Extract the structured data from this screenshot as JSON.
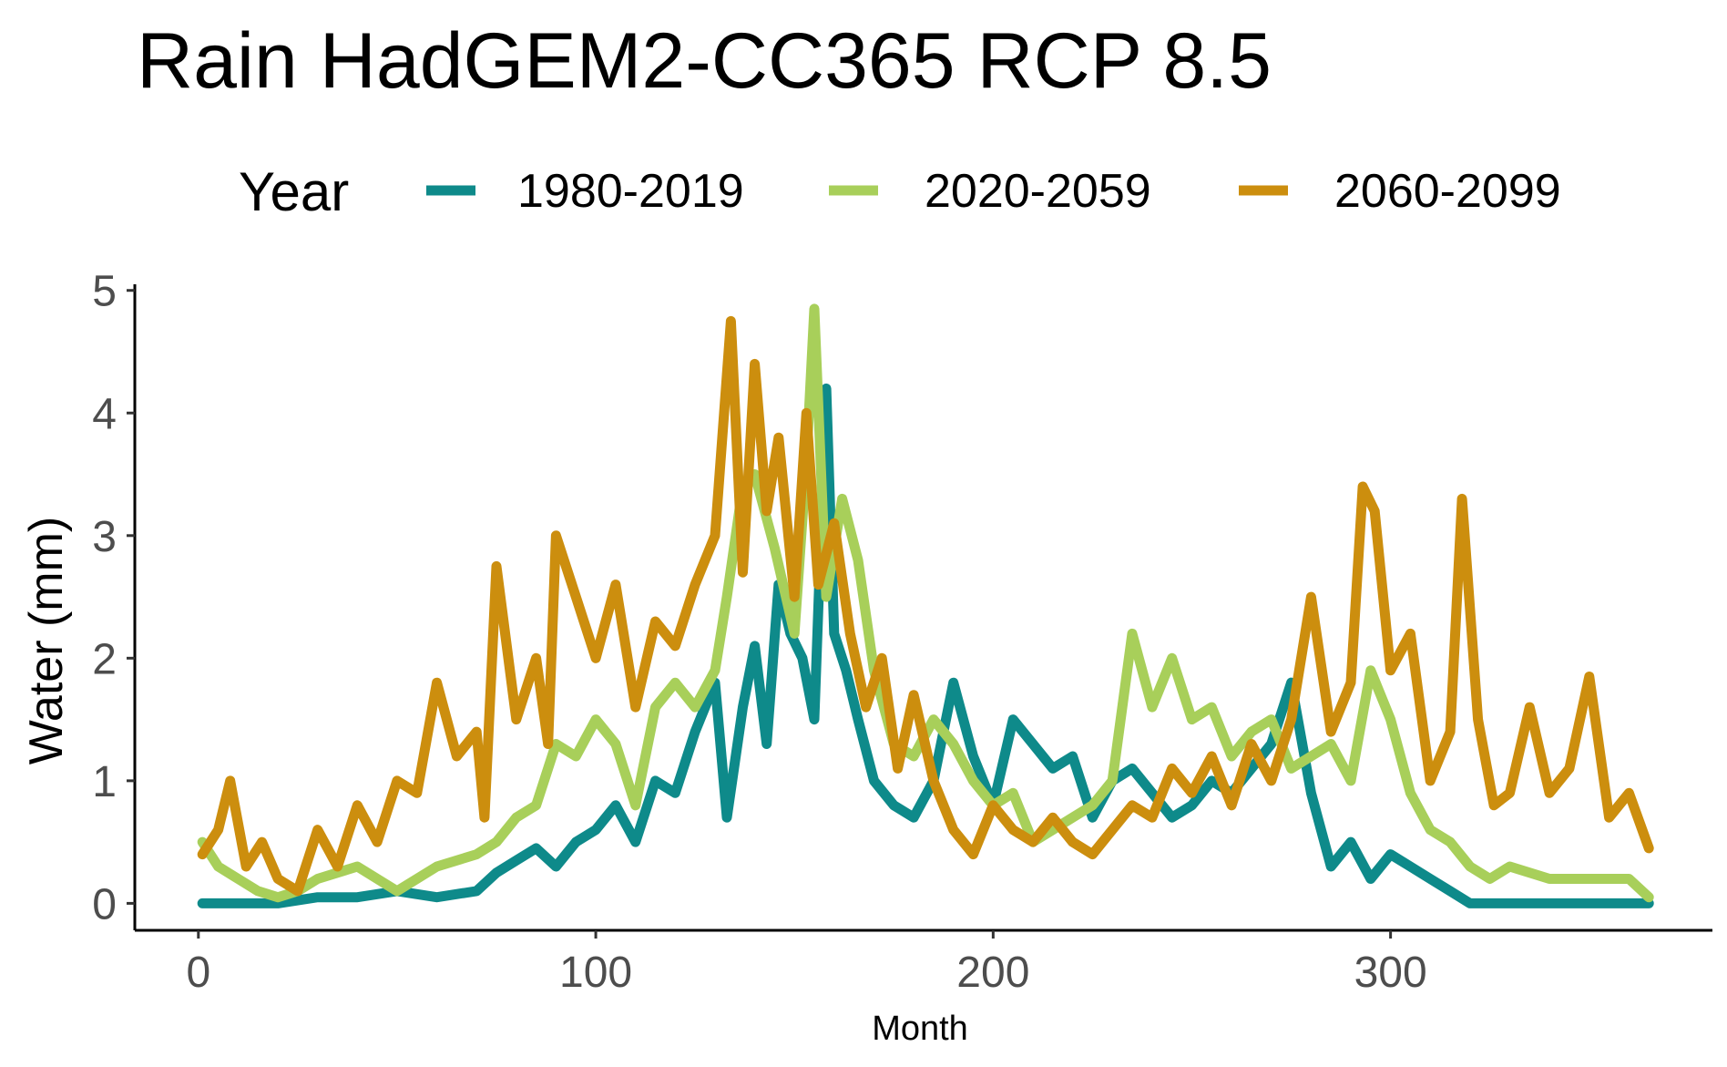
{
  "chart_data": {
    "type": "line",
    "title": "Rain HadGEM2-CC365 RCP 8.5",
    "xlabel": "Month",
    "ylabel": "Water (mm)",
    "xlim": [
      -16,
      381
    ],
    "ylim": [
      -0.22,
      5.05
    ],
    "x_ticks": [
      0,
      100,
      200,
      300
    ],
    "y_ticks": [
      0,
      1,
      2,
      3,
      4,
      5
    ],
    "grid": false,
    "legend": {
      "title": "Year",
      "position": "top"
    },
    "series": [
      {
        "name": "1980-2019",
        "color": "#0E8A8A",
        "x": [
          1,
          10,
          20,
          30,
          40,
          50,
          60,
          70,
          75,
          80,
          85,
          90,
          95,
          100,
          105,
          110,
          115,
          120,
          125,
          130,
          133,
          137,
          140,
          143,
          146,
          149,
          152,
          155,
          158,
          160,
          163,
          166,
          170,
          175,
          180,
          185,
          190,
          195,
          200,
          205,
          210,
          215,
          220,
          225,
          230,
          235,
          240,
          245,
          250,
          255,
          260,
          265,
          270,
          275,
          280,
          285,
          290,
          295,
          300,
          305,
          310,
          315,
          320,
          330,
          340,
          350,
          360,
          365
        ],
        "values": [
          0,
          0,
          0,
          0.05,
          0.05,
          0.1,
          0.05,
          0.1,
          0.25,
          0.35,
          0.45,
          0.3,
          0.5,
          0.6,
          0.8,
          0.5,
          1.0,
          0.9,
          1.4,
          1.8,
          0.7,
          1.6,
          2.1,
          1.3,
          2.6,
          2.2,
          2.0,
          1.5,
          4.2,
          2.2,
          1.9,
          1.5,
          1.0,
          0.8,
          0.7,
          1.0,
          1.8,
          1.2,
          0.8,
          1.5,
          1.3,
          1.1,
          1.2,
          0.7,
          1.0,
          1.1,
          0.9,
          0.7,
          0.8,
          1.0,
          0.9,
          1.1,
          1.3,
          1.8,
          0.9,
          0.3,
          0.5,
          0.2,
          0.4,
          0.3,
          0.2,
          0.1,
          0,
          0,
          0,
          0,
          0,
          0
        ]
      },
      {
        "name": "2020-2059",
        "color": "#A8CF5A",
        "x": [
          1,
          5,
          10,
          15,
          20,
          25,
          30,
          40,
          50,
          60,
          70,
          75,
          80,
          85,
          90,
          95,
          100,
          105,
          110,
          115,
          120,
          125,
          130,
          133,
          137,
          140,
          145,
          150,
          153,
          155,
          158,
          162,
          166,
          170,
          175,
          180,
          185,
          190,
          195,
          200,
          205,
          210,
          215,
          220,
          225,
          230,
          235,
          240,
          245,
          250,
          255,
          260,
          265,
          270,
          275,
          280,
          285,
          290,
          295,
          300,
          305,
          310,
          315,
          320,
          325,
          330,
          340,
          350,
          360,
          365
        ],
        "values": [
          0.5,
          0.3,
          0.2,
          0.1,
          0.05,
          0.1,
          0.2,
          0.3,
          0.1,
          0.3,
          0.4,
          0.5,
          0.7,
          0.8,
          1.3,
          1.2,
          1.5,
          1.3,
          0.8,
          1.6,
          1.8,
          1.6,
          1.9,
          2.5,
          3.4,
          3.5,
          2.9,
          2.2,
          3.6,
          4.85,
          2.5,
          3.3,
          2.8,
          1.9,
          1.3,
          1.2,
          1.5,
          1.3,
          1.0,
          0.8,
          0.9,
          0.5,
          0.6,
          0.7,
          0.8,
          1.0,
          2.2,
          1.6,
          2.0,
          1.5,
          1.6,
          1.2,
          1.4,
          1.5,
          1.1,
          1.2,
          1.3,
          1.0,
          1.9,
          1.5,
          0.9,
          0.6,
          0.5,
          0.3,
          0.2,
          0.3,
          0.2,
          0.2,
          0.2,
          0.05
        ]
      },
      {
        "name": "2060-2099",
        "color": "#CC8E0E",
        "x": [
          1,
          5,
          8,
          12,
          16,
          20,
          25,
          30,
          35,
          40,
          45,
          50,
          55,
          60,
          65,
          70,
          72,
          75,
          80,
          85,
          88,
          90,
          95,
          100,
          105,
          110,
          115,
          120,
          125,
          130,
          134,
          137,
          140,
          143,
          146,
          150,
          153,
          156,
          160,
          164,
          168,
          172,
          176,
          180,
          185,
          190,
          195,
          200,
          205,
          210,
          215,
          220,
          225,
          230,
          235,
          240,
          245,
          250,
          255,
          260,
          265,
          270,
          275,
          280,
          285,
          290,
          293,
          296,
          300,
          305,
          310,
          315,
          318,
          322,
          326,
          330,
          335,
          340,
          345,
          350,
          355,
          360,
          365
        ],
        "values": [
          0.4,
          0.6,
          1.0,
          0.3,
          0.5,
          0.2,
          0.1,
          0.6,
          0.3,
          0.8,
          0.5,
          1.0,
          0.9,
          1.8,
          1.2,
          1.4,
          0.7,
          2.75,
          1.5,
          2.0,
          1.3,
          3.0,
          2.5,
          2.0,
          2.6,
          1.6,
          2.3,
          2.1,
          2.6,
          3.0,
          4.75,
          2.7,
          4.4,
          3.2,
          3.8,
          2.5,
          4.0,
          2.6,
          3.1,
          2.2,
          1.6,
          2.0,
          1.1,
          1.7,
          1.0,
          0.6,
          0.4,
          0.8,
          0.6,
          0.5,
          0.7,
          0.5,
          0.4,
          0.6,
          0.8,
          0.7,
          1.1,
          0.9,
          1.2,
          0.8,
          1.3,
          1.0,
          1.5,
          2.5,
          1.4,
          1.8,
          3.4,
          3.2,
          1.9,
          2.2,
          1.0,
          1.4,
          3.3,
          1.5,
          0.8,
          0.9,
          1.6,
          0.9,
          1.1,
          1.85,
          0.7,
          0.9,
          0.45
        ]
      }
    ]
  }
}
